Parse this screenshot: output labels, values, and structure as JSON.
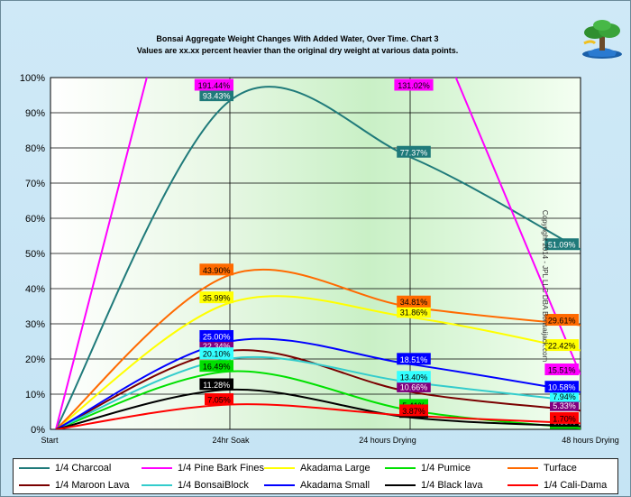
{
  "chart_data": {
    "type": "line",
    "title": "Bonsai Aggregate Weight Changes With Added Water, Over Time. Chart 3",
    "subtitle": "Values are xx.xx percent heavier than the original dry weight at various data points.",
    "categories": [
      "Start",
      "24hr Soak",
      "24 hours Drying",
      "48 hours Drying"
    ],
    "ylim": [
      0,
      100
    ],
    "yticks": [
      "0%",
      "10%",
      "20%",
      "30%",
      "40%",
      "50%",
      "60%",
      "70%",
      "80%",
      "90%",
      "100%"
    ],
    "grid": true,
    "legend_position": "bottom",
    "series": [
      {
        "name": "1/4 Charcoal",
        "color": "#1f7a7a",
        "values": [
          0,
          93.43,
          77.37,
          51.09
        ],
        "labels": [
          "",
          "93.43%",
          "77.37%",
          "51.09%"
        ],
        "label_bg": "#1f7a7a",
        "label_fg": "#ffffff"
      },
      {
        "name": "1/4 Pine Bark Fines",
        "color": "#ff00ff",
        "values": [
          0,
          191.44,
          131.02,
          15.51
        ],
        "labels": [
          "",
          "191.44%",
          "131.02%",
          "15.51%"
        ],
        "label_bg": "#ff00ff",
        "label_fg": "#000000"
      },
      {
        "name": "Akadama Large",
        "color": "#ffff00",
        "values": [
          0,
          35.99,
          31.86,
          22.42
        ],
        "labels": [
          "",
          "35.99%",
          "31.86%",
          "22.42%"
        ],
        "label_bg": "#ffff00",
        "label_fg": "#000000"
      },
      {
        "name": "1/4 Pumice",
        "color": "#00e000",
        "values": [
          0,
          16.49,
          5.41,
          0.27
        ],
        "labels": [
          "",
          "16.49%",
          "5.41%",
          "0.27%"
        ],
        "label_bg": "#00e000",
        "label_fg": "#000000"
      },
      {
        "name": "Turface",
        "color": "#ff6a00",
        "values": [
          0,
          43.9,
          34.81,
          29.61
        ],
        "labels": [
          "",
          "43.90%",
          "34.81%",
          "29.61%"
        ],
        "label_bg": "#ff6a00",
        "label_fg": "#000000"
      },
      {
        "name": "1/4 Maroon Lava",
        "color": "#7a0000",
        "values": [
          0,
          22.34,
          10.66,
          5.33
        ],
        "labels": [
          "",
          "22.34%",
          "10.66%",
          "5.33%"
        ],
        "label_bg": "#800080",
        "label_fg": "#ffffff"
      },
      {
        "name": "1/4 BonsaiBlock",
        "color": "#33cccc",
        "values": [
          0,
          20.1,
          13.4,
          7.94
        ],
        "labels": [
          "",
          "20.10%",
          "13.40%",
          "7.94%"
        ],
        "label_bg": "#33ffff",
        "label_fg": "#000000"
      },
      {
        "name": "Akadama Small",
        "color": "#0000ff",
        "values": [
          0,
          25.0,
          18.51,
          10.58
        ],
        "labels": [
          "",
          "25.00%",
          "18.51%",
          "10.58%"
        ],
        "label_bg": "#0000ff",
        "label_fg": "#ffffff"
      },
      {
        "name": "1/4 Black lava",
        "color": "#000000",
        "values": [
          0,
          11.28,
          3.4,
          0.85
        ],
        "labels": [
          "",
          "11.28%",
          "3.40%",
          "0.85%"
        ],
        "label_bg": "#000000",
        "label_fg": "#ffffff"
      },
      {
        "name": "1/4 Cali-Dama",
        "color": "#ff0000",
        "values": [
          0,
          7.05,
          3.87,
          1.7
        ],
        "labels": [
          "",
          "7.05%",
          "3.87%",
          "1.70%"
        ],
        "label_bg": "#ff0000",
        "label_fg": "#000000"
      }
    ],
    "copyright": "Copyright 2014 - JPL LLC DBA Bonsaijack.com"
  }
}
